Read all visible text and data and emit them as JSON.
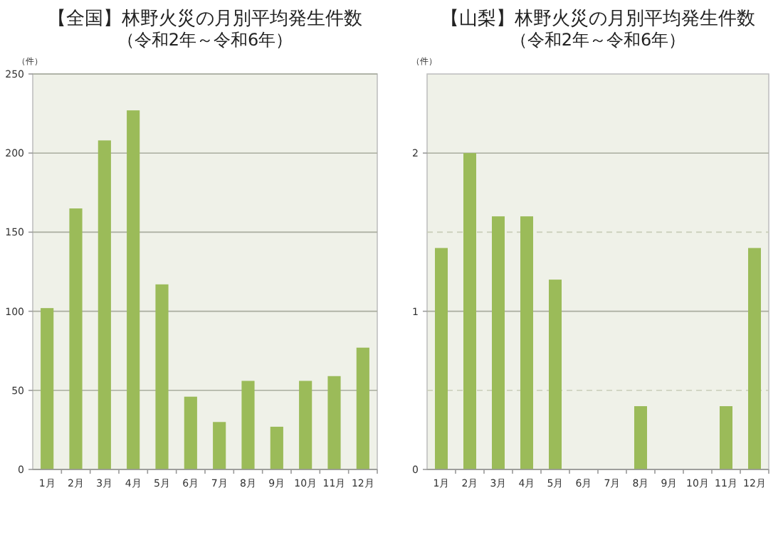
{
  "chart_data": [
    {
      "type": "bar",
      "title": "【全国】林野火災の月別平均発生件数",
      "subtitle": "（令和2年～令和6年）",
      "ylabel": "（件）",
      "categories": [
        "1月",
        "2月",
        "3月",
        "4月",
        "5月",
        "6月",
        "7月",
        "8月",
        "9月",
        "10月",
        "11月",
        "12月"
      ],
      "values": [
        102,
        165,
        208,
        227,
        117,
        46,
        30,
        56,
        27,
        56,
        59,
        77
      ],
      "color": "#9bbb59",
      "ylim": [
        0,
        250
      ],
      "yticks": [
        0,
        50,
        100,
        150,
        200,
        250
      ],
      "grid": "y"
    },
    {
      "type": "bar",
      "title": "【山梨】林野火災の月別平均発生件数",
      "subtitle": "（令和2年～令和6年）",
      "ylabel": "（件）",
      "categories": [
        "1月",
        "2月",
        "3月",
        "4月",
        "5月",
        "6月",
        "7月",
        "8月",
        "9月",
        "10月",
        "11月",
        "12月"
      ],
      "values": [
        1.4,
        2,
        1.6,
        1.6,
        1.2,
        0,
        0,
        0.4,
        0,
        0,
        0.4,
        1.4
      ],
      "color": "#9bbb59",
      "ylim": [
        0,
        2.5
      ],
      "yticks": [
        0,
        1,
        2
      ],
      "grid": "y",
      "ref_lines": [
        {
          "axis": "y",
          "value": 0.5,
          "line_style": "dashed",
          "color": "#c8cdb8"
        },
        {
          "axis": "y",
          "value": 1.5,
          "line_style": "dashed",
          "color": "#c8cdb8"
        }
      ]
    }
  ]
}
